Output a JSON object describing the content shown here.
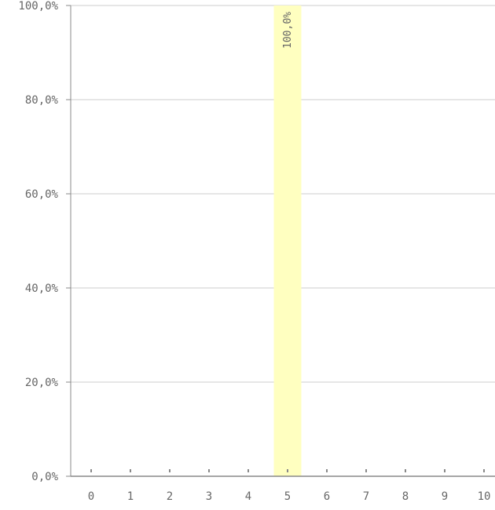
{
  "chart_data": {
    "type": "bar",
    "categories": [
      "0",
      "1",
      "2",
      "3",
      "4",
      "5",
      "6",
      "7",
      "8",
      "9",
      "10"
    ],
    "values": [
      0,
      0,
      0,
      0,
      0,
      100,
      0,
      0,
      0,
      0,
      0
    ],
    "data_labels": [
      "",
      "",
      "",
      "",
      "",
      "100,0%",
      "",
      "",
      "",
      "",
      ""
    ],
    "y_tick_labels": [
      "0,0%",
      "20,0%",
      "40,0%",
      "60,0%",
      "80,0%",
      "100,0%"
    ],
    "y_tick_values": [
      0,
      20,
      40,
      60,
      80,
      100
    ],
    "ylim": [
      0,
      100
    ],
    "title": "",
    "xlabel": "",
    "ylabel": "",
    "grid": true,
    "colors": {
      "bar": "#ffffc0",
      "grid": "#cccccc",
      "axis": "#888888",
      "text": "#666666"
    }
  }
}
